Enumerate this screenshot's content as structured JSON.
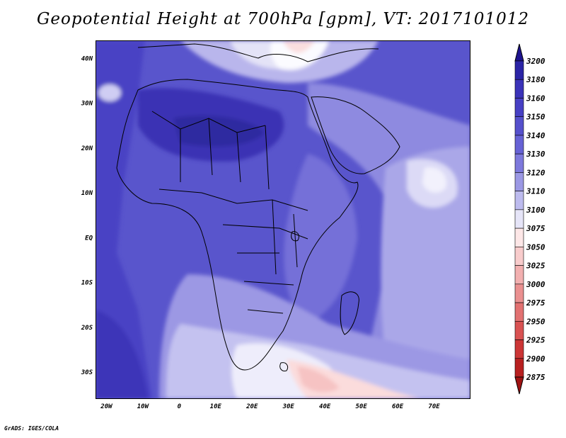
{
  "title": "Geopotential Height at 700hPa [gpm], VT: 2017101012",
  "credit": "GrADS: IGES/COLA",
  "map": {
    "lon_labels": [
      "20W",
      "10W",
      "0",
      "10E",
      "20E",
      "30E",
      "40E",
      "50E",
      "60E",
      "70E"
    ],
    "lat_labels": [
      "40N",
      "30N",
      "20N",
      "10N",
      "EQ",
      "10S",
      "20S",
      "30S"
    ],
    "lon_range": [
      -23,
      80
    ],
    "lat_range": [
      -36,
      44
    ]
  },
  "colorbar": {
    "levels": [
      "3200",
      "3180",
      "3160",
      "3150",
      "3140",
      "3130",
      "3120",
      "3110",
      "3100",
      "3075",
      "3050",
      "3025",
      "3000",
      "2975",
      "2950",
      "2925",
      "2900",
      "2875"
    ],
    "colors": [
      "#1e138e",
      "#2b24a6",
      "#3b33b9",
      "#4740c4",
      "#5550cc",
      "#6662d5",
      "#7d79dc",
      "#9b98e4",
      "#bdbbee",
      "#e6e5f8",
      "#fde7e7",
      "#f8cccc",
      "#f2b0b0",
      "#ea9090",
      "#e27171",
      "#d95252",
      "#cc3636",
      "#b82020",
      "#a01313"
    ]
  },
  "palette": {
    "ocean_deep": "#4a43c4",
    "land_main": "#5a55cc",
    "sahara_core": "#312a9e",
    "south_ridge": "#fde7e7",
    "arabian_high": "#efeffb"
  }
}
